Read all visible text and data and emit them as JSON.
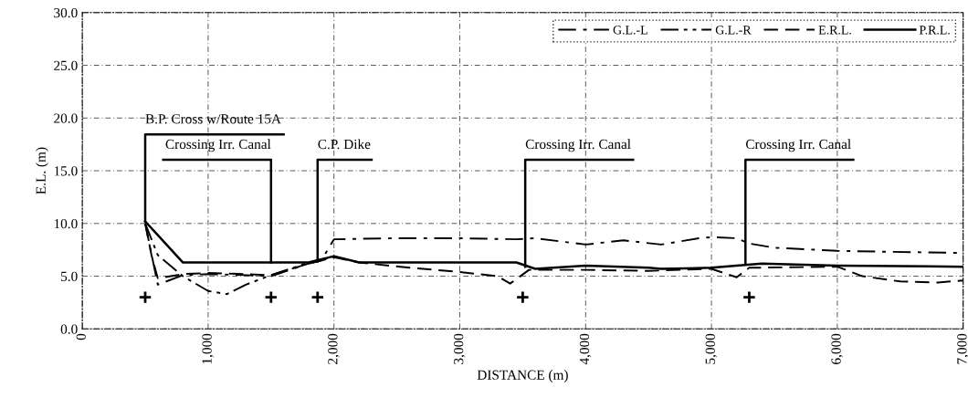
{
  "chart_data": {
    "type": "line",
    "xlabel": "DISTANCE (m)",
    "ylabel": "E.L. (m)",
    "xlim": [
      0,
      7000
    ],
    "ylim": [
      0,
      30
    ],
    "xticks": [
      0,
      {
        "value": 1000,
        "label": "1,000"
      },
      {
        "value": 2000,
        "label": "2,000"
      },
      {
        "value": 3000,
        "label": "3,000"
      },
      {
        "value": 4000,
        "label": "4,000"
      },
      {
        "value": 5000,
        "label": "5,000"
      },
      {
        "value": 6000,
        "label": "6,000"
      },
      {
        "value": 7000,
        "label": "7,000"
      }
    ],
    "yticks": [
      {
        "value": 0,
        "label": "0.0"
      },
      {
        "value": 5,
        "label": "5.0"
      },
      {
        "value": 10,
        "label": "10.0"
      },
      {
        "value": 15,
        "label": "15.0"
      },
      {
        "value": 20,
        "label": "20.0"
      },
      {
        "value": 25,
        "label": "25.0"
      },
      {
        "value": 30,
        "label": "30.0"
      }
    ],
    "grid": true,
    "legend": "top right",
    "series": [
      {
        "name": "G.L.-L",
        "color": "#000000",
        "line_style": "dashdot",
        "x": [
          500,
          600,
          800,
          1000,
          1300,
          1500,
          1800,
          1900,
          2000,
          2500,
          3000,
          3450,
          3600,
          4000,
          4300,
          4600,
          4900,
          5000,
          5200,
          5300,
          5500,
          6000,
          7000
        ],
        "values": [
          10.0,
          4.2,
          5.1,
          5.2,
          5.1,
          5.0,
          6.2,
          6.5,
          8.5,
          8.6,
          8.6,
          8.5,
          8.6,
          8.0,
          8.4,
          8.0,
          8.6,
          8.7,
          8.6,
          8.1,
          7.7,
          7.4,
          7.2
        ]
      },
      {
        "name": "G.L.-R",
        "color": "#000000",
        "line_style": "dashdotdot",
        "x": [
          500,
          600,
          800,
          1000,
          1150,
          1300,
          1500,
          1800,
          1900,
          2000
        ],
        "values": [
          10.0,
          7.0,
          5.0,
          3.6,
          3.3,
          4.2,
          5.1,
          6.3,
          6.6,
          6.8
        ]
      },
      {
        "name": "E.R.L.",
        "color": "#000000",
        "line_style": "dashed",
        "x": [
          500,
          550,
          600,
          800,
          1000,
          1300,
          1500,
          1800,
          2000,
          2200,
          2600,
          3000,
          3300,
          3400,
          3550,
          4000,
          4500,
          5000,
          5200,
          5300,
          6000,
          6200,
          6500,
          6800,
          7000
        ],
        "values": [
          10.0,
          7.0,
          4.8,
          5.2,
          5.3,
          5.2,
          5.1,
          6.2,
          6.8,
          6.3,
          5.8,
          5.4,
          5.0,
          4.3,
          5.6,
          5.6,
          5.5,
          5.7,
          4.9,
          5.8,
          5.9,
          5.0,
          4.5,
          4.4,
          4.6
        ]
      },
      {
        "name": "P.R.L.",
        "color": "#000000",
        "line_style": "solid",
        "x": [
          500,
          800,
          1800,
          2000,
          2200,
          3450,
          3600,
          4000,
          4500,
          4600,
          5000,
          5400,
          6000,
          7000
        ],
        "values": [
          10.2,
          6.3,
          6.3,
          6.9,
          6.3,
          6.3,
          5.7,
          6.0,
          5.8,
          5.7,
          5.8,
          6.2,
          6.0,
          5.9
        ]
      },
      {
        "type": "scatter",
        "color": "#000000",
        "marker": "cross",
        "x": [
          500,
          1500,
          1870,
          3500,
          5300
        ],
        "values": [
          3.0,
          3.0,
          3.0,
          3.0,
          3.0
        ]
      }
    ],
    "annotations": [
      {
        "text": "B.P. Cross w/Route 15A",
        "x": 500,
        "y": 10.2
      },
      {
        "text": "Crossing Irr. Canal",
        "x": 1500,
        "y": 6.3
      },
      {
        "text": "C.P. Dike",
        "x": 1870,
        "y": 6.4
      },
      {
        "text": "Crossing Irr. Canal",
        "x": 3520,
        "y": 5.9
      },
      {
        "text": "Crossing Irr. Canal",
        "x": 5270,
        "y": 6.1
      }
    ]
  }
}
